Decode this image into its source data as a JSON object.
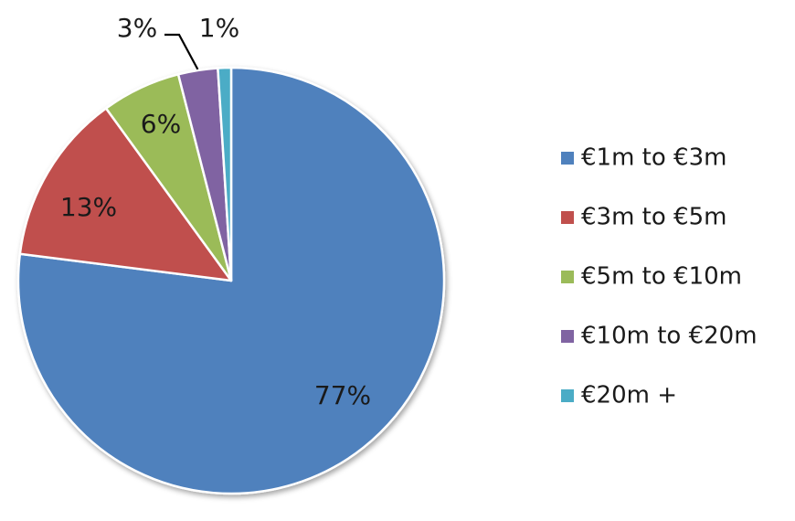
{
  "chart_data": {
    "type": "pie",
    "title": "",
    "legend_position": "right",
    "series": [
      {
        "name": "€1m to €3m",
        "value": 77,
        "label": "77%",
        "color": "#4F81BD"
      },
      {
        "name": "€3m to €5m",
        "value": 13,
        "label": "13%",
        "color": "#C0504D"
      },
      {
        "name": "€5m to €10m",
        "value": 6,
        "label": "6%",
        "color": "#9BBB59"
      },
      {
        "name": "€10m to €20m",
        "value": 3,
        "label": "3%",
        "color": "#8064A2"
      },
      {
        "name": "€20m +",
        "value": 1,
        "label": "1%",
        "color": "#4BACC6"
      }
    ]
  }
}
